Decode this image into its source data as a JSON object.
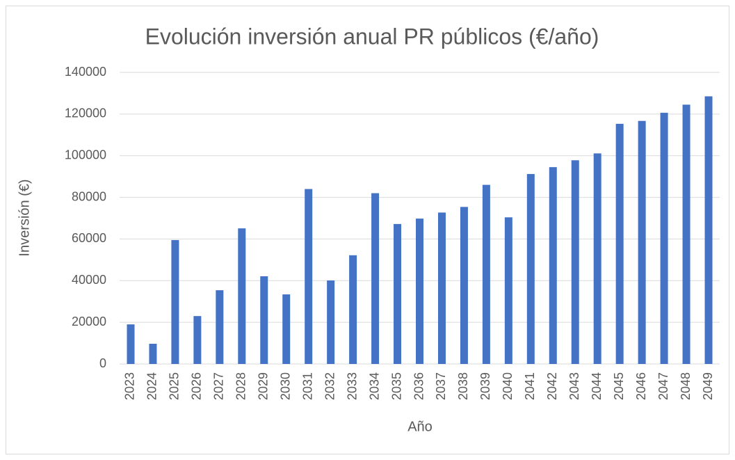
{
  "chart_data": {
    "type": "bar",
    "title": "Evolución inversión anual PR públicos (€/año)",
    "x_label": "Año",
    "y_label": "Inversión (€)",
    "categories": [
      "2023",
      "2024",
      "2025",
      "2026",
      "2027",
      "2028",
      "2029",
      "2030",
      "2031",
      "2032",
      "2033",
      "2034",
      "2035",
      "2036",
      "2037",
      "2038",
      "2039",
      "2040",
      "2041",
      "2042",
      "2043",
      "2044",
      "2045",
      "2046",
      "2047",
      "2048",
      "2049"
    ],
    "values": [
      19000,
      9700,
      59500,
      23000,
      35400,
      65100,
      42100,
      33400,
      84000,
      40100,
      52200,
      82000,
      67200,
      69800,
      72700,
      75400,
      86000,
      70400,
      91200,
      94500,
      97800,
      101100,
      115300,
      116700,
      120600,
      124500,
      128500
    ],
    "color": "#4472c4",
    "ylim": [
      0,
      140000
    ],
    "yticks": [
      0,
      20000,
      40000,
      60000,
      80000,
      100000,
      120000,
      140000
    ],
    "grid": true
  }
}
